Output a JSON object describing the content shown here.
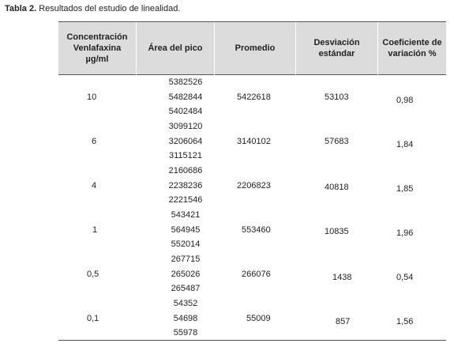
{
  "caption": {
    "label": "Tabla 2.",
    "text": "Resultados del estudio de linealidad."
  },
  "table": {
    "headers": [
      "Concentración\nVenlafaxina\nµg/ml",
      "Área del pico",
      "Promedio",
      "Desviación\nestándar",
      "Coeficiente de\nvariación %"
    ],
    "rows": [
      {
        "concentracion": "10",
        "areas": [
          "5382526",
          "5482844",
          "5402484"
        ],
        "promedio": "5422618",
        "desviacion": "53103",
        "cv": "0,98"
      },
      {
        "concentracion": "6",
        "areas": [
          "3099120",
          "3206064",
          "3115121"
        ],
        "promedio": "3140102",
        "desviacion": "57683",
        "cv": "1,84"
      },
      {
        "concentracion": "4",
        "areas": [
          "2160686",
          "2238236",
          "2221546"
        ],
        "promedio": "2206823",
        "desviacion": "40818",
        "cv": "1,85"
      },
      {
        "concentracion": "1",
        "areas": [
          "543421",
          "564945",
          "552014"
        ],
        "promedio": "553460",
        "desviacion": "10835",
        "cv": "1,96"
      },
      {
        "concentracion": "0,5",
        "areas": [
          "267715",
          "265026",
          "265487"
        ],
        "promedio": "266076",
        "desviacion": "1438",
        "cv": "0,54"
      },
      {
        "concentracion": "0,1",
        "areas": [
          "54352",
          "54698",
          "55978"
        ],
        "promedio": "55009",
        "desviacion": "857",
        "cv": "1,56"
      }
    ]
  }
}
